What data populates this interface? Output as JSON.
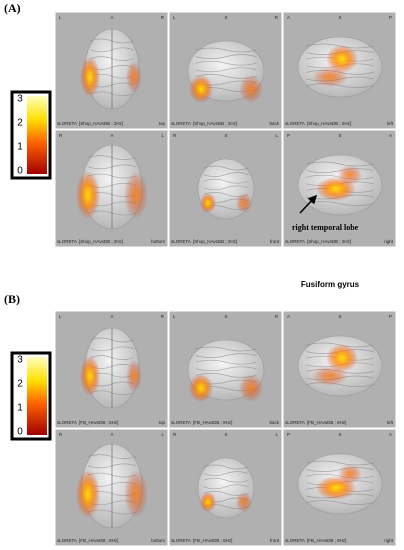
{
  "panels": [
    {
      "label": "(A)",
      "colorbar": {
        "ticks": [
          3,
          2,
          1,
          0
        ]
      },
      "views": [
        {
          "left": "L",
          "top": "A",
          "right": "R",
          "method": "sLORETA",
          "contrast": "[Shop_HAvsDB ; 2Hz]",
          "view": "top"
        },
        {
          "left": "L",
          "top": "S",
          "right": "R",
          "method": "sLORETA",
          "contrast": "[Shop_HAvsDB ; 2Hz]",
          "view": "back"
        },
        {
          "left": "A",
          "top": "S",
          "right": "P",
          "method": "sLORETA",
          "contrast": "[Shop_HAvsDB ; 2Hz]",
          "view": "left"
        },
        {
          "left": "R",
          "top": "A",
          "right": "L",
          "method": "sLORETA",
          "contrast": "[Shop_HAvsDB ; 2Hz]",
          "view": "bottom"
        },
        {
          "left": "R",
          "top": "S",
          "right": "L",
          "method": "sLORETA",
          "contrast": "[Shop_HAvsDB ; 2Hz]",
          "view": "front"
        },
        {
          "left": "P",
          "top": "S",
          "right": "A",
          "method": "sLORETA",
          "contrast": "[Shop_HAvsDB ; 2Hz]",
          "view": "right"
        }
      ],
      "annotation": "right temporal lobe"
    },
    {
      "label": "(B)",
      "title": "Fusiform gyrus",
      "colorbar": {
        "ticks": [
          3,
          2,
          1,
          0
        ]
      },
      "views": [
        {
          "left": "L",
          "top": "A",
          "right": "R",
          "method": "sLORETA",
          "contrast": "[FB_HAvsDB ; 8Hz]",
          "view": "top"
        },
        {
          "left": "L",
          "top": "S",
          "right": "R",
          "method": "sLORETA",
          "contrast": "[FB_HAvsDB ; 8Hz]",
          "view": "back"
        },
        {
          "left": "A",
          "top": "S",
          "right": "P",
          "method": "sLORETA",
          "contrast": "[FB_HAvsDB ; 8Hz]",
          "view": "left"
        },
        {
          "left": "R",
          "top": "A",
          "right": "L",
          "method": "sLORETA",
          "contrast": "[FB_HAvsDB ; 8Hz]",
          "view": "bottom"
        },
        {
          "left": "R",
          "top": "S",
          "right": "L",
          "method": "sLORETA",
          "contrast": "[FB_HAvsDB ; 8Hz]",
          "view": "front"
        },
        {
          "left": "P",
          "top": "S",
          "right": "A",
          "method": "sLORETA",
          "contrast": "[FB_HAvsDB ; 8Hz]",
          "view": "right"
        }
      ]
    }
  ]
}
